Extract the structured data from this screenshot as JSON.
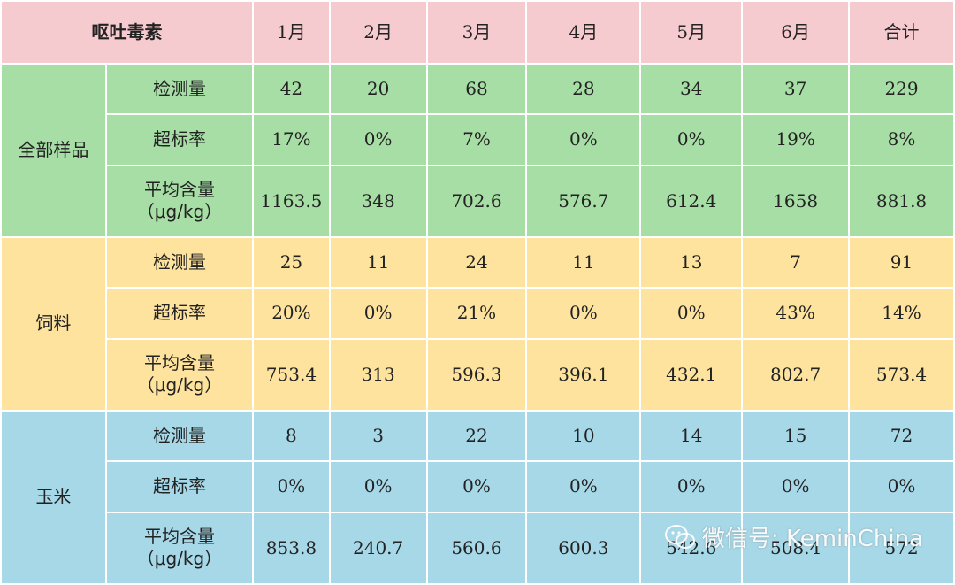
{
  "table": {
    "corner": "呕吐毒素",
    "columns": [
      "1月",
      "2月",
      "3月",
      "4月",
      "5月",
      "6月",
      "合计"
    ],
    "groups": [
      {
        "name": "全部样品",
        "rows": [
          {
            "metric": "检测量",
            "values": [
              "42",
              "20",
              "68",
              "28",
              "34",
              "37",
              "229"
            ]
          },
          {
            "metric": "超标率",
            "values": [
              "17%",
              "0%",
              "7%",
              "0%",
              "0%",
              "19%",
              "8%"
            ]
          },
          {
            "metric": "平均含量",
            "unit": "（μg/kg）",
            "values": [
              "1163.5",
              "348",
              "702.6",
              "576.7",
              "612.4",
              "1658",
              "881.8"
            ]
          }
        ]
      },
      {
        "name": "饲料",
        "rows": [
          {
            "metric": "检测量",
            "values": [
              "25",
              "11",
              "24",
              "11",
              "13",
              "7",
              "91"
            ]
          },
          {
            "metric": "超标率",
            "values": [
              "20%",
              "0%",
              "21%",
              "0%",
              "0%",
              "43%",
              "14%"
            ]
          },
          {
            "metric": "平均含量",
            "unit": "（μg/kg）",
            "values": [
              "753.4",
              "313",
              "596.3",
              "396.1",
              "432.1",
              "802.7",
              "573.4"
            ]
          }
        ]
      },
      {
        "name": "玉米",
        "rows": [
          {
            "metric": "检测量",
            "values": [
              "8",
              "3",
              "22",
              "10",
              "14",
              "15",
              "72"
            ]
          },
          {
            "metric": "超标率",
            "values": [
              "0%",
              "0%",
              "0%",
              "0%",
              "0%",
              "0%",
              "0%"
            ]
          },
          {
            "metric": "平均含量",
            "unit": "（μg/kg）",
            "values": [
              "853.8",
              "240.7",
              "560.6",
              "600.3",
              "542.6",
              "508.4",
              "572"
            ]
          }
        ]
      }
    ]
  },
  "watermark": {
    "text": "微信号: KeminChina",
    "icon": "wechat-icon"
  },
  "colors": {
    "header": "#f6cbcf",
    "group_all": "#a7dea5",
    "group_feed": "#fde39d",
    "group_corn": "#a7d8e8"
  }
}
